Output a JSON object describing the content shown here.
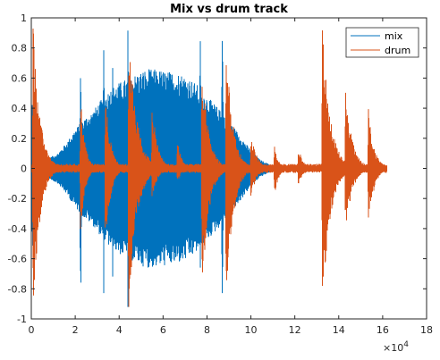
{
  "chart_data": {
    "type": "line",
    "title": "Mix vs drum track",
    "xlabel": "",
    "ylabel": "",
    "xlim": [
      0,
      180000
    ],
    "ylim": [
      -1,
      1
    ],
    "x_tick_values": [
      0,
      20000,
      40000,
      60000,
      80000,
      100000,
      120000,
      140000,
      160000,
      180000
    ],
    "x_tick_labels": [
      "0",
      "2",
      "4",
      "6",
      "8",
      "10",
      "12",
      "14",
      "16",
      "18"
    ],
    "x_exponent_label": "×10",
    "x_exponent_power": "4",
    "y_tick_values": [
      1,
      0.8,
      0.6,
      0.4,
      0.2,
      0,
      -0.2,
      -0.4,
      -0.6,
      -0.8,
      -1
    ],
    "y_tick_labels": [
      "1",
      "0.8",
      "0.6",
      "0.4",
      "0.2",
      "0",
      "-0.2",
      "-0.4",
      "-0.6",
      "-0.8",
      "-1"
    ],
    "grid": false,
    "legend_position": "top-right",
    "series": [
      {
        "name": "mix",
        "color": "#0072BD",
        "envelope_x": [
          0,
          500,
          1500,
          4000,
          8000,
          12000,
          16000,
          20000,
          24000,
          28000,
          32000,
          36000,
          40000,
          44000,
          48000,
          52000,
          56000,
          60000,
          64000,
          68000,
          72000,
          76000,
          80000,
          84000,
          88000,
          92000,
          96000,
          100000,
          104000,
          108000,
          110000,
          112000
        ],
        "envelope_amp": [
          0.05,
          0.55,
          0.35,
          0.05,
          0.07,
          0.1,
          0.17,
          0.26,
          0.33,
          0.38,
          0.46,
          0.53,
          0.57,
          0.6,
          0.63,
          0.66,
          0.66,
          0.65,
          0.64,
          0.63,
          0.6,
          0.55,
          0.48,
          0.42,
          0.35,
          0.28,
          0.2,
          0.12,
          0.06,
          0.03,
          0.02,
          0.0
        ],
        "peaks": [
          {
            "x": 22500,
            "up": 0.75,
            "down": 0.95
          },
          {
            "x": 33000,
            "up": 0.9,
            "down": 0.85
          },
          {
            "x": 37000,
            "up": 0.85,
            "down": 0.8
          },
          {
            "x": 44000,
            "up": 1.0,
            "down": 1.0
          },
          {
            "x": 53000,
            "up": 0.72,
            "down": 0.45
          },
          {
            "x": 67000,
            "up": 0.6,
            "down": 0.4
          },
          {
            "x": 77000,
            "up": 0.95,
            "down": 0.7
          },
          {
            "x": 87000,
            "up": 1.0,
            "down": 1.0
          }
        ]
      },
      {
        "name": "drum",
        "color": "#D95319",
        "base_amp": 0.03,
        "end_x": 162000,
        "hits": [
          {
            "x": 800,
            "up": 1.0,
            "down": 1.0,
            "decay": 3000
          },
          {
            "x": 22400,
            "up": 0.5,
            "down": 0.45,
            "decay": 2000
          },
          {
            "x": 33700,
            "up": 0.55,
            "down": 0.6,
            "decay": 2200
          },
          {
            "x": 44300,
            "up": 1.0,
            "down": 1.0,
            "decay": 3500
          },
          {
            "x": 55000,
            "up": 0.45,
            "down": 0.2,
            "decay": 2500
          },
          {
            "x": 66500,
            "up": 0.2,
            "down": 0.1,
            "decay": 1800
          },
          {
            "x": 77700,
            "up": 0.7,
            "down": 0.85,
            "decay": 3000
          },
          {
            "x": 88700,
            "up": 0.85,
            "down": 1.0,
            "decay": 3000
          },
          {
            "x": 100000,
            "up": 0.25,
            "down": 0.2,
            "decay": 2500
          },
          {
            "x": 110700,
            "up": 0.15,
            "down": 0.2,
            "decay": 1800
          },
          {
            "x": 121600,
            "up": 0.15,
            "down": 0.12,
            "decay": 2000
          },
          {
            "x": 132500,
            "up": 0.98,
            "down": 0.95,
            "decay": 3500
          },
          {
            "x": 143000,
            "up": 0.55,
            "down": 0.45,
            "decay": 3000
          },
          {
            "x": 153500,
            "up": 0.4,
            "down": 0.4,
            "decay": 2500
          }
        ]
      }
    ]
  }
}
